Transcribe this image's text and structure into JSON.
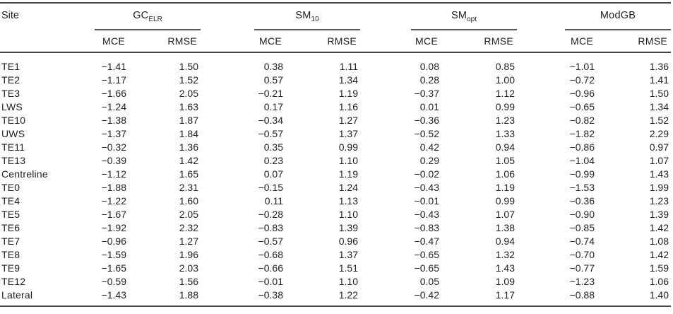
{
  "table": {
    "site_header": "Site",
    "metrics": [
      "MCE",
      "RMSE"
    ],
    "groups": [
      {
        "key": "gc-elr",
        "main": "GC",
        "sub": "ELR"
      },
      {
        "key": "sm-10",
        "main": "SM",
        "sub": "10"
      },
      {
        "key": "sm-opt",
        "main": "SM",
        "sub": "opt"
      },
      {
        "key": "modgb",
        "main": "ModGB",
        "sub": ""
      }
    ],
    "rows": [
      {
        "site": "TE1",
        "values": [
          "−1.41",
          "1.50",
          "0.38",
          "1.11",
          "0.08",
          "0.85",
          "−1.01",
          "1.36"
        ]
      },
      {
        "site": "TE2",
        "values": [
          "−1.17",
          "1.52",
          "0.57",
          "1.34",
          "0.28",
          "1.00",
          "−0.72",
          "1.41"
        ]
      },
      {
        "site": "TE3",
        "values": [
          "−1.66",
          "2.05",
          "−0.21",
          "1.19",
          "−0.37",
          "1.12",
          "−0.96",
          "1.50"
        ]
      },
      {
        "site": "LWS",
        "values": [
          "−1.24",
          "1.63",
          "0.17",
          "1.16",
          "0.01",
          "0.99",
          "−0.65",
          "1.34"
        ]
      },
      {
        "site": "TE10",
        "values": [
          "−1.38",
          "1.87",
          "−0.34",
          "1.27",
          "−0.36",
          "1.23",
          "−0.82",
          "1.52"
        ]
      },
      {
        "site": "UWS",
        "values": [
          "−1.37",
          "1.84",
          "−0.57",
          "1.37",
          "−0.52",
          "1.33",
          "−1.82",
          "2.29"
        ]
      },
      {
        "site": "TE11",
        "values": [
          "−0.32",
          "1.36",
          "0.35",
          "0.99",
          "0.42",
          "0.94",
          "−0.86",
          "0.97"
        ]
      },
      {
        "site": "TE13",
        "values": [
          "−0.39",
          "1.42",
          "0.23",
          "1.10",
          "0.29",
          "1.05",
          "−1.04",
          "1.07"
        ]
      },
      {
        "site": "Centreline",
        "values": [
          "−1.12",
          "1.65",
          "0.07",
          "1.19",
          "−0.02",
          "1.06",
          "−0.99",
          "1.43"
        ]
      },
      {
        "site": "TE0",
        "values": [
          "−1.88",
          "2.31",
          "−0.15",
          "1.24",
          "−0.43",
          "1.19",
          "−1.53",
          "1.99"
        ]
      },
      {
        "site": "TE4",
        "values": [
          "−1.22",
          "1.60",
          "0.11",
          "1.13",
          "−0.01",
          "0.99",
          "−0.36",
          "1.23"
        ]
      },
      {
        "site": "TE5",
        "values": [
          "−1.67",
          "2.05",
          "−0.28",
          "1.10",
          "−0.43",
          "1.07",
          "−0.90",
          "1.39"
        ]
      },
      {
        "site": "TE6",
        "values": [
          "−1.92",
          "2.32",
          "−0.83",
          "1.39",
          "−0.83",
          "1.38",
          "−0.85",
          "1.42"
        ]
      },
      {
        "site": "TE7",
        "values": [
          "−0.96",
          "1.27",
          "−0.57",
          "0.96",
          "−0.47",
          "0.94",
          "−0.74",
          "1.08"
        ]
      },
      {
        "site": "TE8",
        "values": [
          "−1.59",
          "1.96",
          "−0.68",
          "1.37",
          "−0.65",
          "1.32",
          "−0.70",
          "1.42"
        ]
      },
      {
        "site": "TE9",
        "values": [
          "−1.65",
          "2.03",
          "−0.66",
          "1.51",
          "−0.65",
          "1.43",
          "−0.77",
          "1.59"
        ]
      },
      {
        "site": "TE12",
        "values": [
          "−0.59",
          "1.56",
          "−0.01",
          "1.10",
          "0.05",
          "1.09",
          "−1.23",
          "1.06"
        ]
      },
      {
        "site": "Lateral",
        "values": [
          "−1.43",
          "1.88",
          "−0.38",
          "1.22",
          "−0.42",
          "1.17",
          "−0.88",
          "1.40"
        ]
      }
    ],
    "colors": {
      "rule": "#454545",
      "group_rule": "#5a5a5a",
      "text": "#1f1f1f",
      "background": "#ffffff"
    }
  }
}
